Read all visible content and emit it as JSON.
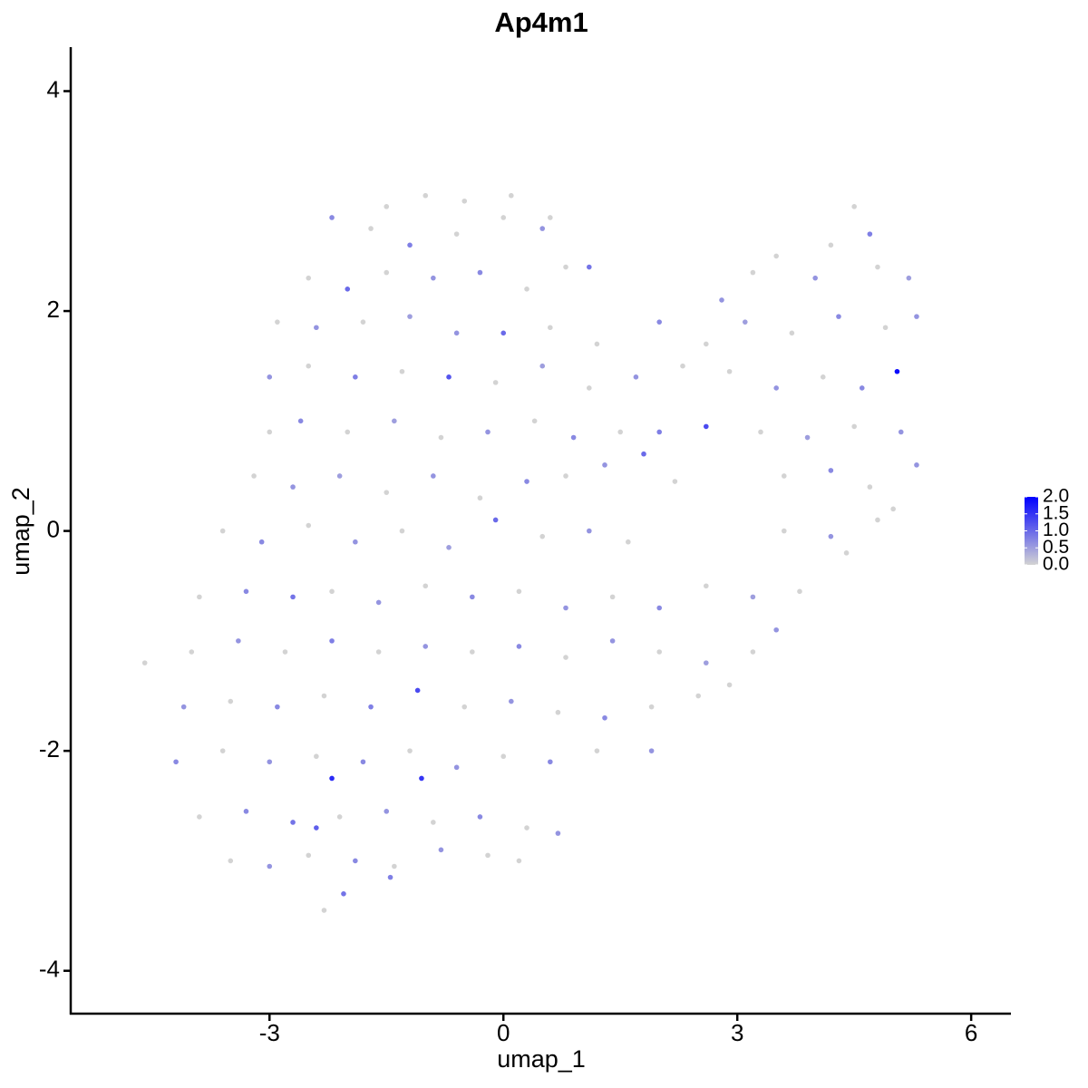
{
  "chart_data": {
    "type": "scatter",
    "title": "Ap4m1",
    "x_label": "umap_1",
    "y_label": "umap_2",
    "xlim": [
      -5.55,
      6.51
    ],
    "ylim": [
      -4.39,
      4.4
    ],
    "xticks": [
      -3,
      0,
      3,
      6
    ],
    "yticks": [
      -4,
      -2,
      0,
      2,
      4
    ],
    "low_color": "#d3d3d3",
    "high_color": "#0000ff",
    "color_lim": [
      0,
      2
    ],
    "color_ticks": [
      {
        "value": 0,
        "label": "0.0"
      },
      {
        "value": 0.5,
        "label": "0.5"
      },
      {
        "value": 1,
        "label": "1.0"
      },
      {
        "value": 1.5,
        "label": "1.5"
      },
      {
        "value": 2,
        "label": "2.0"
      }
    ],
    "points": [
      [
        -1.0,
        3.05,
        0
      ],
      [
        -0.5,
        3.0,
        0
      ],
      [
        0.1,
        3.05,
        0
      ],
      [
        0.6,
        2.85,
        0
      ],
      [
        -1.5,
        2.95,
        0
      ],
      [
        -2.2,
        2.85,
        0.7
      ],
      [
        -1.7,
        2.75,
        0
      ],
      [
        -1.2,
        2.6,
        0.8
      ],
      [
        -0.6,
        2.7,
        0
      ],
      [
        0.0,
        2.85,
        0
      ],
      [
        0.5,
        2.75,
        0.6
      ],
      [
        1.1,
        2.4,
        0.9
      ],
      [
        4.5,
        2.95,
        0
      ],
      [
        4.7,
        2.7,
        0.8
      ],
      [
        4.2,
        2.6,
        0
      ],
      [
        -2.5,
        2.3,
        0
      ],
      [
        -2.0,
        2.2,
        1.0
      ],
      [
        -1.5,
        2.35,
        0
      ],
      [
        -0.9,
        2.3,
        0.6
      ],
      [
        -0.3,
        2.35,
        0.7
      ],
      [
        0.3,
        2.2,
        0
      ],
      [
        0.8,
        2.4,
        0
      ],
      [
        3.5,
        2.5,
        0
      ],
      [
        4.0,
        2.3,
        0.6
      ],
      [
        4.8,
        2.4,
        0
      ],
      [
        5.2,
        2.3,
        0.5
      ],
      [
        2.8,
        2.1,
        0.6
      ],
      [
        3.2,
        2.35,
        0
      ],
      [
        -2.9,
        1.9,
        0
      ],
      [
        -2.4,
        1.85,
        0.6
      ],
      [
        -1.8,
        1.9,
        0
      ],
      [
        -1.2,
        1.95,
        0.5
      ],
      [
        -0.6,
        1.8,
        0.6
      ],
      [
        0.0,
        1.8,
        1.0
      ],
      [
        0.6,
        1.85,
        0
      ],
      [
        1.2,
        1.7,
        0
      ],
      [
        2.0,
        1.9,
        0.7
      ],
      [
        2.6,
        1.7,
        0
      ],
      [
        3.1,
        1.9,
        0.5
      ],
      [
        3.7,
        1.8,
        0
      ],
      [
        4.3,
        1.95,
        0.7
      ],
      [
        4.9,
        1.85,
        0
      ],
      [
        5.3,
        1.95,
        0.6
      ],
      [
        -3.0,
        1.4,
        0.6
      ],
      [
        -2.5,
        1.5,
        0
      ],
      [
        -1.9,
        1.4,
        0.8
      ],
      [
        -1.3,
        1.45,
        0
      ],
      [
        -0.7,
        1.4,
        1.2
      ],
      [
        -0.1,
        1.35,
        0
      ],
      [
        0.5,
        1.5,
        0.5
      ],
      [
        1.1,
        1.3,
        0
      ],
      [
        1.7,
        1.4,
        0.6
      ],
      [
        2.3,
        1.5,
        0
      ],
      [
        2.9,
        1.45,
        0
      ],
      [
        3.5,
        1.3,
        0.6
      ],
      [
        4.1,
        1.4,
        0
      ],
      [
        4.6,
        1.3,
        0.7
      ],
      [
        5.05,
        1.45,
        1.9
      ],
      [
        -3.0,
        0.9,
        0
      ],
      [
        -2.6,
        1.0,
        0.7
      ],
      [
        -2.0,
        0.9,
        0
      ],
      [
        -1.4,
        1.0,
        0.5
      ],
      [
        -0.8,
        0.85,
        0
      ],
      [
        -0.2,
        0.9,
        0.6
      ],
      [
        0.4,
        1.0,
        0
      ],
      [
        0.9,
        0.85,
        0.7
      ],
      [
        1.5,
        0.9,
        0
      ],
      [
        2.0,
        0.9,
        0.8
      ],
      [
        2.6,
        0.95,
        1.3
      ],
      [
        3.3,
        0.9,
        0
      ],
      [
        3.9,
        0.85,
        0.5
      ],
      [
        4.5,
        0.95,
        0
      ],
      [
        5.1,
        0.9,
        0.6
      ],
      [
        -3.2,
        0.5,
        0
      ],
      [
        -2.7,
        0.4,
        0.6
      ],
      [
        -2.1,
        0.5,
        0.5
      ],
      [
        -1.5,
        0.35,
        0
      ],
      [
        -0.9,
        0.5,
        0.6
      ],
      [
        -0.3,
        0.3,
        0
      ],
      [
        0.3,
        0.45,
        0.7
      ],
      [
        0.8,
        0.5,
        0
      ],
      [
        1.3,
        0.6,
        0.6
      ],
      [
        1.8,
        0.7,
        1.0
      ],
      [
        2.2,
        0.45,
        0
      ],
      [
        3.6,
        0.5,
        0
      ],
      [
        4.2,
        0.55,
        0.7
      ],
      [
        4.7,
        0.4,
        0
      ],
      [
        5.3,
        0.6,
        0.6
      ],
      [
        -3.6,
        0.0,
        0
      ],
      [
        -3.1,
        -0.1,
        0.7
      ],
      [
        -2.5,
        0.05,
        0
      ],
      [
        -1.9,
        -0.1,
        0.6
      ],
      [
        -1.3,
        0.0,
        0
      ],
      [
        -0.7,
        -0.15,
        0.5
      ],
      [
        -0.1,
        0.1,
        1.0
      ],
      [
        0.5,
        -0.05,
        0
      ],
      [
        1.1,
        0.0,
        0.6
      ],
      [
        1.6,
        -0.1,
        0
      ],
      [
        3.6,
        0.0,
        0
      ],
      [
        4.2,
        -0.05,
        0.6
      ],
      [
        4.8,
        0.1,
        0
      ],
      [
        5.0,
        0.2,
        0
      ],
      [
        -3.9,
        -0.6,
        0
      ],
      [
        -3.3,
        -0.55,
        0.7
      ],
      [
        -2.7,
        -0.6,
        0.9
      ],
      [
        -2.2,
        -0.55,
        0
      ],
      [
        -1.6,
        -0.65,
        0.6
      ],
      [
        -1.0,
        -0.5,
        0
      ],
      [
        -0.4,
        -0.6,
        0.7
      ],
      [
        0.2,
        -0.55,
        0
      ],
      [
        0.8,
        -0.7,
        0.6
      ],
      [
        1.4,
        -0.6,
        0
      ],
      [
        2.0,
        -0.7,
        0.7
      ],
      [
        2.6,
        -0.5,
        0
      ],
      [
        3.2,
        -0.6,
        0.5
      ],
      [
        3.8,
        -0.55,
        0
      ],
      [
        4.4,
        -0.2,
        0
      ],
      [
        -4.6,
        -1.2,
        0
      ],
      [
        -4.0,
        -1.1,
        0
      ],
      [
        -3.4,
        -1.0,
        0.6
      ],
      [
        -2.8,
        -1.1,
        0
      ],
      [
        -2.2,
        -1.0,
        0.8
      ],
      [
        -1.6,
        -1.1,
        0
      ],
      [
        -1.0,
        -1.05,
        0.6
      ],
      [
        -0.4,
        -1.1,
        0
      ],
      [
        0.2,
        -1.05,
        0.7
      ],
      [
        0.8,
        -1.15,
        0
      ],
      [
        1.4,
        -1.0,
        0.6
      ],
      [
        2.0,
        -1.1,
        0
      ],
      [
        2.6,
        -1.2,
        0.5
      ],
      [
        3.2,
        -1.1,
        0
      ],
      [
        3.5,
        -0.9,
        0.6
      ],
      [
        -4.1,
        -1.6,
        0.6
      ],
      [
        -3.5,
        -1.55,
        0
      ],
      [
        -2.9,
        -1.6,
        0.7
      ],
      [
        -2.3,
        -1.5,
        0
      ],
      [
        -1.7,
        -1.6,
        0.8
      ],
      [
        -1.1,
        -1.45,
        1.3
      ],
      [
        -0.5,
        -1.6,
        0
      ],
      [
        0.1,
        -1.55,
        0.6
      ],
      [
        0.7,
        -1.65,
        0
      ],
      [
        1.3,
        -1.7,
        0.7
      ],
      [
        1.9,
        -1.6,
        0
      ],
      [
        2.5,
        -1.5,
        0
      ],
      [
        2.9,
        -1.4,
        0
      ],
      [
        -4.2,
        -2.1,
        0.7
      ],
      [
        -3.6,
        -2.0,
        0
      ],
      [
        -3.0,
        -2.1,
        0.6
      ],
      [
        -2.4,
        -2.05,
        0
      ],
      [
        -1.8,
        -2.1,
        0.7
      ],
      [
        -1.2,
        -2.0,
        0
      ],
      [
        -0.6,
        -2.15,
        0.6
      ],
      [
        0.0,
        -2.05,
        0
      ],
      [
        0.6,
        -2.1,
        0.7
      ],
      [
        1.2,
        -2.0,
        0
      ],
      [
        1.9,
        -2.0,
        0.6
      ],
      [
        -2.2,
        -2.25,
        1.6
      ],
      [
        -1.05,
        -2.25,
        1.5
      ],
      [
        -3.9,
        -2.6,
        0
      ],
      [
        -3.3,
        -2.55,
        0.7
      ],
      [
        -2.7,
        -2.65,
        0.9
      ],
      [
        -2.1,
        -2.6,
        0
      ],
      [
        -1.5,
        -2.55,
        0.6
      ],
      [
        -0.9,
        -2.65,
        0
      ],
      [
        -0.3,
        -2.6,
        0.7
      ],
      [
        0.3,
        -2.7,
        0
      ],
      [
        0.7,
        -2.75,
        0.6
      ],
      [
        -2.4,
        -2.7,
        1.1
      ],
      [
        -3.5,
        -3.0,
        0
      ],
      [
        -3.0,
        -3.05,
        0.6
      ],
      [
        -2.5,
        -2.95,
        0
      ],
      [
        -1.9,
        -3.0,
        0.7
      ],
      [
        -1.4,
        -3.05,
        0
      ],
      [
        -0.8,
        -2.9,
        0.6
      ],
      [
        -0.2,
        -2.95,
        0
      ],
      [
        0.2,
        -3.0,
        0
      ],
      [
        -2.05,
        -3.3,
        0.9
      ],
      [
        -2.3,
        -3.45,
        0
      ],
      [
        -1.45,
        -3.15,
        0.8
      ]
    ]
  }
}
